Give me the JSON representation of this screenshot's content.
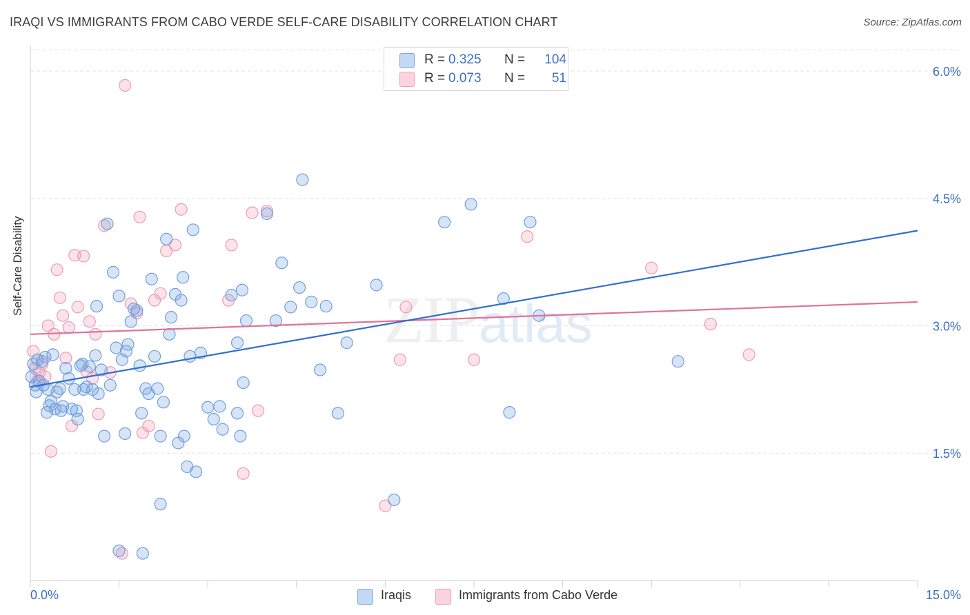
{
  "header": {
    "title": "IRAQI VS IMMIGRANTS FROM CABO VERDE SELF-CARE DISABILITY CORRELATION CHART",
    "source": "Source: ZipAtlas.com"
  },
  "watermark": {
    "zip": "ZIP",
    "atlas": "atlas"
  },
  "legend": {
    "rows": [
      {
        "r_label": "R =",
        "r_value": "0.325",
        "n_label": "N =",
        "n_value": "104",
        "color": "#7aa7e0"
      },
      {
        "r_label": "R =",
        "r_value": "0.073",
        "n_label": "N =",
        "n_value": "51",
        "color": "#f0a0b8"
      }
    ]
  },
  "bottom_legend": {
    "iraqis": "Iraqis",
    "cabo_verde": "Immigrants from Cabo Verde"
  },
  "chart_data": {
    "type": "scatter",
    "title": "IRAQI VS IMMIGRANTS FROM CABO VERDE SELF-CARE DISABILITY CORRELATION CHART",
    "ylabel": "Self-Care Disability",
    "xlim": [
      0,
      15
    ],
    "ylim": [
      0,
      6.3
    ],
    "x_tick_labels": [
      "0.0%",
      "15.0%"
    ],
    "y_ticks": [
      1.5,
      3.0,
      4.5,
      6.0
    ],
    "y_tick_labels": [
      "1.5%",
      "3.0%",
      "4.5%",
      "6.0%"
    ],
    "grid": "horizontal dashed",
    "legend_position": "top-center",
    "colors": {
      "iraqis": "#6f9fde",
      "cabo_verde": "#f09ab5",
      "iraqis_line": "#2f6fd0",
      "cabo_verde_line": "#e0729b"
    },
    "series": [
      {
        "name": "Iraqis",
        "trend": {
          "x": [
            0,
            15
          ],
          "y": [
            2.28,
            4.12
          ]
        },
        "points": [
          [
            0.05,
            2.55
          ],
          [
            0.08,
            2.3
          ],
          [
            0.1,
            2.22
          ],
          [
            0.12,
            2.6
          ],
          [
            0.15,
            2.35
          ],
          [
            0.2,
            2.58
          ],
          [
            0.22,
            2.3
          ],
          [
            0.25,
            2.63
          ],
          [
            0.28,
            1.98
          ],
          [
            0.3,
            2.25
          ],
          [
            0.32,
            2.06
          ],
          [
            0.35,
            2.11
          ],
          [
            0.38,
            2.66
          ],
          [
            0.42,
            2.02
          ],
          [
            0.45,
            2.22
          ],
          [
            0.5,
            2.26
          ],
          [
            0.52,
            2.0
          ],
          [
            0.55,
            2.05
          ],
          [
            0.6,
            2.5
          ],
          [
            0.65,
            2.38
          ],
          [
            0.7,
            2.02
          ],
          [
            0.75,
            2.25
          ],
          [
            0.78,
            2.0
          ],
          [
            0.8,
            1.9
          ],
          [
            0.85,
            2.53
          ],
          [
            0.88,
            2.55
          ],
          [
            0.9,
            2.25
          ],
          [
            0.95,
            2.28
          ],
          [
            1.0,
            2.52
          ],
          [
            1.05,
            2.25
          ],
          [
            1.1,
            2.65
          ],
          [
            1.12,
            3.23
          ],
          [
            1.15,
            2.2
          ],
          [
            1.2,
            2.48
          ],
          [
            1.25,
            1.7
          ],
          [
            1.3,
            4.2
          ],
          [
            1.35,
            2.3
          ],
          [
            1.4,
            3.63
          ],
          [
            1.45,
            2.74
          ],
          [
            1.5,
            3.35
          ],
          [
            1.55,
            2.6
          ],
          [
            1.6,
            1.73
          ],
          [
            1.62,
            2.7
          ],
          [
            1.65,
            2.78
          ],
          [
            1.7,
            3.05
          ],
          [
            1.75,
            3.2
          ],
          [
            1.8,
            3.18
          ],
          [
            1.85,
            2.53
          ],
          [
            1.88,
            1.97
          ],
          [
            1.9,
            0.32
          ],
          [
            1.95,
            2.26
          ],
          [
            2.0,
            2.2
          ],
          [
            2.05,
            3.55
          ],
          [
            2.1,
            2.64
          ],
          [
            2.15,
            2.26
          ],
          [
            2.2,
            1.7
          ],
          [
            2.25,
            2.1
          ],
          [
            2.3,
            4.02
          ],
          [
            2.35,
            2.9
          ],
          [
            2.38,
            3.1
          ],
          [
            2.45,
            3.37
          ],
          [
            2.5,
            1.62
          ],
          [
            2.55,
            3.3
          ],
          [
            2.58,
            3.57
          ],
          [
            2.6,
            1.7
          ],
          [
            2.65,
            1.34
          ],
          [
            2.7,
            2.64
          ],
          [
            2.75,
            4.13
          ],
          [
            2.8,
            1.28
          ],
          [
            2.88,
            2.68
          ],
          [
            3.0,
            2.04
          ],
          [
            3.1,
            1.9
          ],
          [
            3.2,
            2.05
          ],
          [
            3.25,
            1.78
          ],
          [
            3.4,
            3.36
          ],
          [
            3.5,
            1.97
          ],
          [
            3.55,
            1.7
          ],
          [
            3.58,
            3.42
          ],
          [
            3.6,
            2.33
          ],
          [
            3.65,
            3.06
          ],
          [
            3.5,
            2.8
          ],
          [
            4.0,
            4.32
          ],
          [
            4.15,
            3.06
          ],
          [
            4.25,
            3.74
          ],
          [
            4.4,
            3.22
          ],
          [
            4.55,
            3.45
          ],
          [
            4.6,
            4.72
          ],
          [
            4.75,
            3.28
          ],
          [
            4.9,
            2.48
          ],
          [
            5.0,
            3.23
          ],
          [
            5.2,
            1.97
          ],
          [
            5.35,
            2.8
          ],
          [
            5.85,
            3.48
          ],
          [
            6.15,
            0.95
          ],
          [
            7.0,
            4.22
          ],
          [
            7.45,
            4.43
          ],
          [
            8.0,
            3.32
          ],
          [
            8.1,
            1.98
          ],
          [
            8.45,
            4.22
          ],
          [
            8.6,
            3.12
          ],
          [
            10.95,
            2.58
          ],
          [
            0.02,
            2.4
          ],
          [
            2.2,
            0.9
          ],
          [
            1.5,
            0.35
          ]
        ]
      },
      {
        "name": "Immigrants from Cabo Verde",
        "trend": {
          "x": [
            0,
            15
          ],
          "y": [
            2.9,
            3.28
          ]
        },
        "points": [
          [
            0.05,
            2.7
          ],
          [
            0.08,
            2.5
          ],
          [
            0.12,
            2.35
          ],
          [
            0.15,
            2.45
          ],
          [
            0.2,
            2.55
          ],
          [
            0.25,
            2.4
          ],
          [
            0.3,
            3.0
          ],
          [
            0.35,
            1.52
          ],
          [
            0.4,
            2.9
          ],
          [
            0.45,
            3.66
          ],
          [
            0.5,
            3.33
          ],
          [
            0.55,
            3.12
          ],
          [
            0.6,
            2.62
          ],
          [
            0.65,
            2.98
          ],
          [
            0.7,
            1.82
          ],
          [
            0.75,
            3.83
          ],
          [
            0.8,
            3.22
          ],
          [
            0.9,
            3.82
          ],
          [
            0.95,
            2.46
          ],
          [
            1.0,
            3.05
          ],
          [
            1.05,
            2.38
          ],
          [
            1.1,
            2.9
          ],
          [
            1.15,
            1.96
          ],
          [
            1.25,
            4.18
          ],
          [
            1.35,
            2.45
          ],
          [
            1.55,
            0.32
          ],
          [
            1.6,
            5.83
          ],
          [
            1.7,
            3.26
          ],
          [
            1.8,
            3.15
          ],
          [
            1.85,
            4.28
          ],
          [
            1.9,
            1.74
          ],
          [
            2.0,
            1.82
          ],
          [
            2.1,
            3.3
          ],
          [
            2.2,
            3.38
          ],
          [
            2.3,
            3.88
          ],
          [
            2.45,
            3.95
          ],
          [
            2.55,
            4.37
          ],
          [
            3.35,
            3.3
          ],
          [
            3.4,
            3.95
          ],
          [
            3.6,
            1.26
          ],
          [
            3.75,
            4.33
          ],
          [
            3.85,
            2.0
          ],
          [
            4.0,
            4.35
          ],
          [
            6.0,
            0.88
          ],
          [
            6.25,
            2.6
          ],
          [
            6.35,
            3.22
          ],
          [
            7.5,
            2.6
          ],
          [
            8.4,
            4.05
          ],
          [
            10.5,
            3.68
          ],
          [
            11.5,
            3.02
          ],
          [
            12.15,
            2.66
          ]
        ]
      }
    ]
  }
}
